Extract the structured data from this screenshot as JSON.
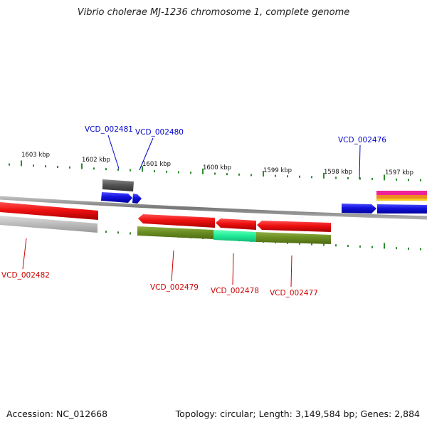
{
  "title": "Vibrio cholerae MJ-1236 chromosome 1, complete genome",
  "footer": {
    "accession": "Accession: NC_012668",
    "summary": "Topology: circular; Length: 3,149,584 bp; Genes: 2,884"
  },
  "colors": {
    "backbone": "#8a8a8a",
    "tick": "#2e8b2e",
    "forward_label": "#0000cc",
    "reverse_label": "#cc0000",
    "red_gene": "#ee1111",
    "blue_gene": "#1111dd",
    "gray_gene": "#555555",
    "olive_gene": "#6b8e23",
    "teal_gene": "#22ee99",
    "light_gray_gene": "#bbbbbb",
    "magenta_gene": "#ee2299",
    "orange_gene": "#ee8822"
  },
  "scale": {
    "unit": "kbp",
    "major_ticks": [
      {
        "label": "1603 kbp"
      },
      {
        "label": "1602 kbp"
      },
      {
        "label": "1601 kbp"
      },
      {
        "label": "1600 kbp"
      },
      {
        "label": "1599 kbp"
      },
      {
        "label": "1598 kbp"
      },
      {
        "label": "1597 kbp"
      }
    ]
  },
  "gene_labels": [
    {
      "id": "VCD_002481",
      "strand": "forward"
    },
    {
      "id": "VCD_002480",
      "strand": "forward"
    },
    {
      "id": "VCD_002476",
      "strand": "forward"
    },
    {
      "id": "VCD_002482",
      "strand": "reverse"
    },
    {
      "id": "VCD_002479",
      "strand": "reverse"
    },
    {
      "id": "VCD_002478",
      "strand": "reverse"
    },
    {
      "id": "VCD_002477",
      "strand": "reverse"
    }
  ]
}
